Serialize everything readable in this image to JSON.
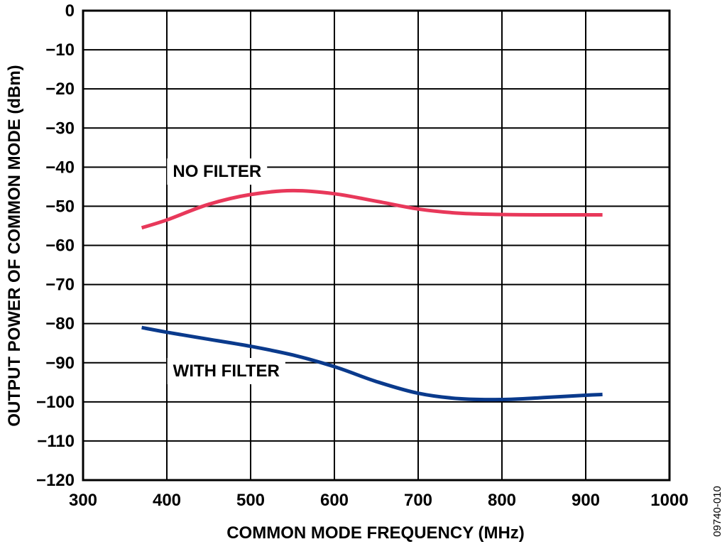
{
  "chart_data": {
    "type": "line",
    "title": "",
    "xlabel": "COMMON MODE FREQUENCY (MHz)",
    "ylabel": "OUTPUT POWER OF COMMON MODE (dBm)",
    "xlim": [
      300,
      1000
    ],
    "ylim": [
      -120,
      0
    ],
    "x_ticks": [
      300,
      400,
      500,
      600,
      700,
      800,
      900,
      1000
    ],
    "y_ticks": [
      0,
      -10,
      -20,
      -30,
      -40,
      -50,
      -60,
      -70,
      -80,
      -90,
      -100,
      -110,
      -120
    ],
    "x_tick_labels": [
      "300",
      "400",
      "500",
      "600",
      "700",
      "800",
      "900",
      "1000"
    ],
    "y_tick_labels": [
      "0",
      "−10",
      "−20",
      "−30",
      "−40",
      "−50",
      "−60",
      "−70",
      "−80",
      "−90",
      "−100",
      "−110",
      "−120"
    ],
    "grid": true,
    "series": [
      {
        "name": "NO FILTER",
        "color": "#e8385a",
        "label_at": [
          460,
          -42.5
        ],
        "x": [
          370,
          400,
          450,
          500,
          550,
          600,
          650,
          700,
          750,
          800,
          850,
          900,
          920
        ],
        "y": [
          -55.5,
          -53.5,
          -49.5,
          -47,
          -46,
          -46.8,
          -48.7,
          -50.7,
          -51.8,
          -52.1,
          -52.2,
          -52.2,
          -52.2
        ]
      },
      {
        "name": "WITH FILTER",
        "color": "#0a3a8c",
        "label_at": [
          471,
          -93.5
        ],
        "x": [
          370,
          400,
          450,
          500,
          550,
          600,
          650,
          700,
          750,
          800,
          850,
          900,
          920
        ],
        "y": [
          -81,
          -82.2,
          -84,
          -85.8,
          -88,
          -91,
          -94.8,
          -97.8,
          -99.2,
          -99.4,
          -98.9,
          -98.3,
          -98.1
        ]
      }
    ]
  },
  "figure_code": "09740-010"
}
